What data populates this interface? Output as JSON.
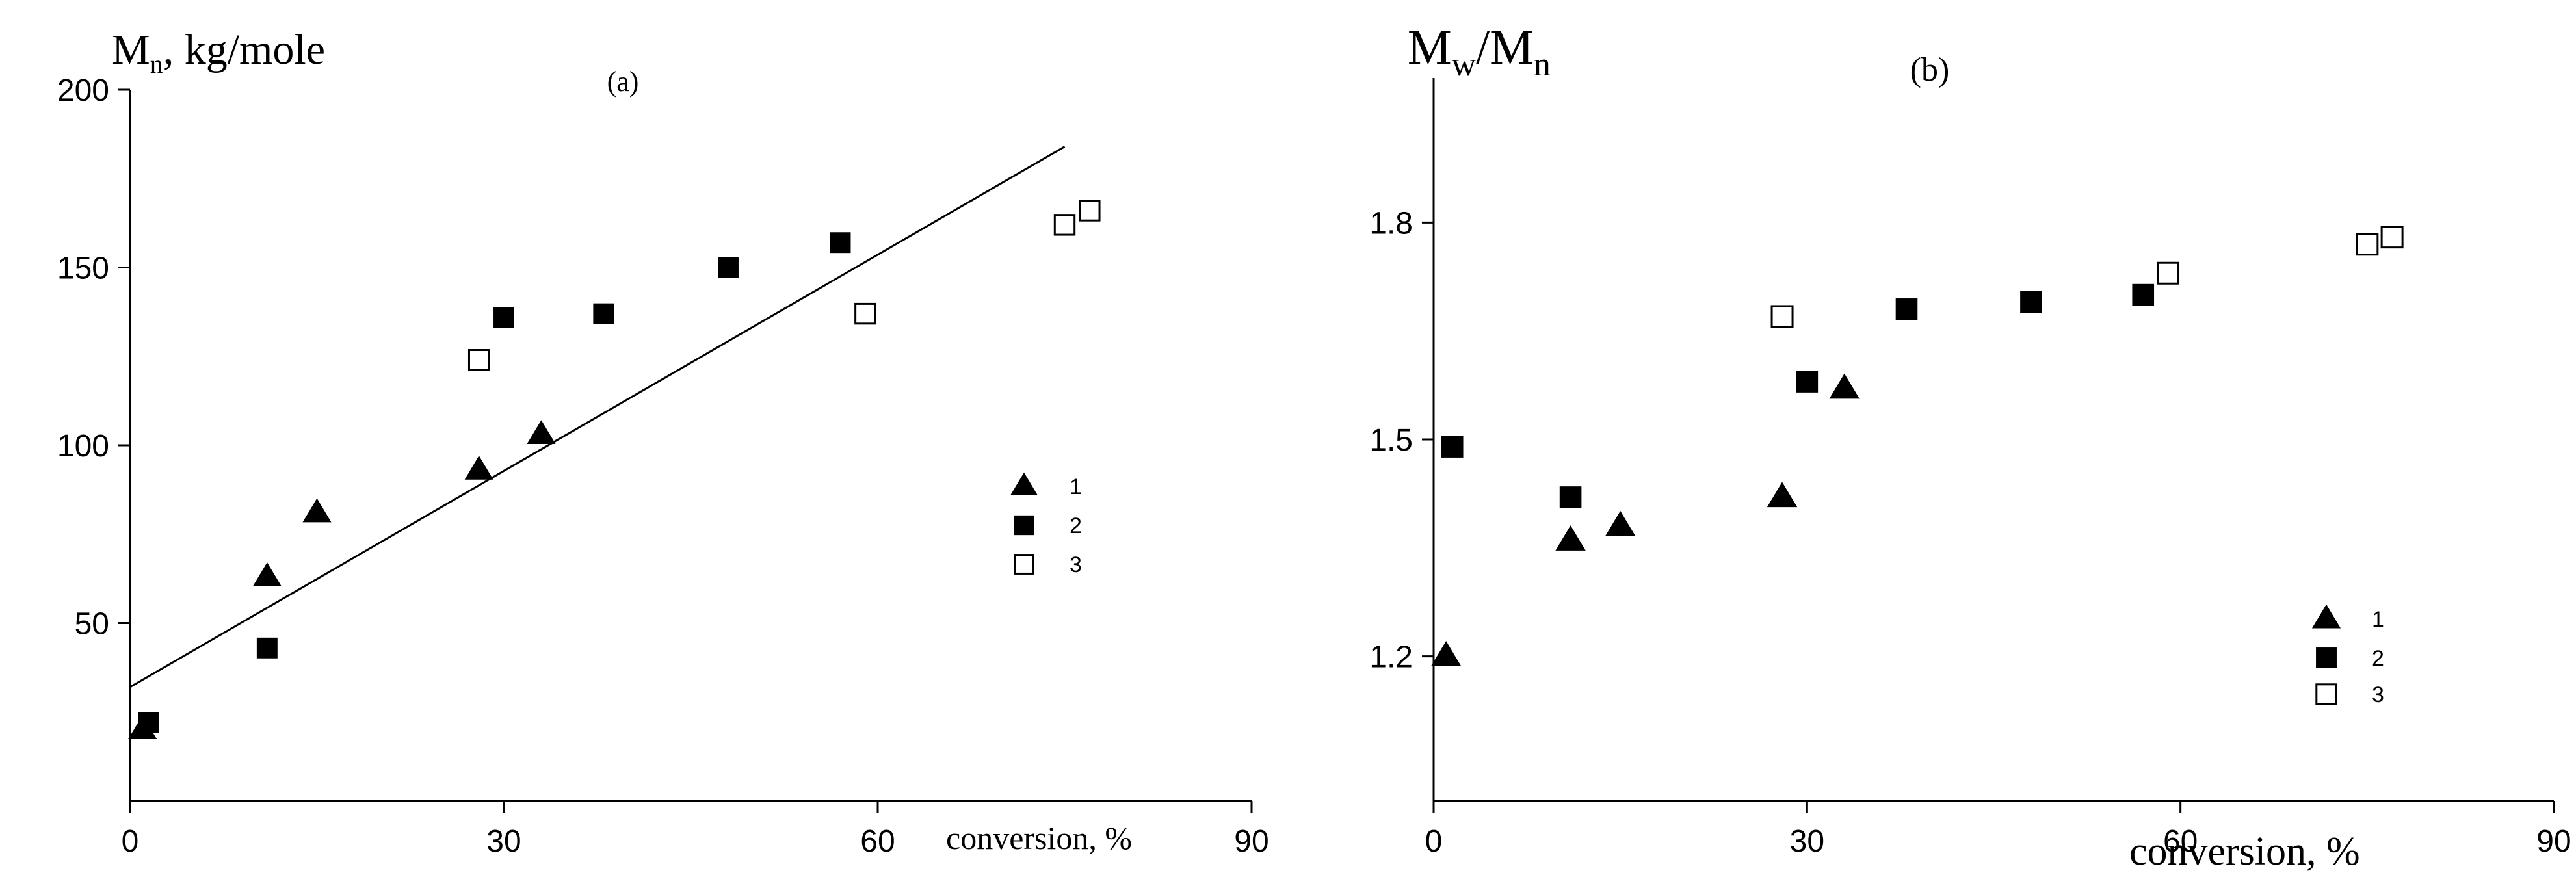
{
  "chart_data": [
    {
      "type": "scatter",
      "panel_label": "(a)",
      "ylabel_main": "M",
      "ylabel_sub": "n",
      "ylabel_suffix": ", kg/mole",
      "xlabel": "conversion, %",
      "xlim": [
        0,
        90
      ],
      "ylim": [
        0,
        200
      ],
      "x_ticks": [
        "0",
        "30",
        "60",
        "90"
      ],
      "y_ticks": [
        "50",
        "100",
        "150",
        "200"
      ],
      "legend": [
        "1",
        "2",
        "3"
      ],
      "legend_position": "right",
      "series": [
        {
          "name": "1",
          "marker": "triangle-filled",
          "points": [
            [
              1,
              20
            ],
            [
              11,
              63
            ],
            [
              15,
              81
            ],
            [
              28,
              93
            ],
            [
              33,
              103
            ]
          ]
        },
        {
          "name": "2",
          "marker": "square-filled",
          "points": [
            [
              1.5,
              22
            ],
            [
              11,
              43
            ],
            [
              30,
              136
            ],
            [
              38,
              137
            ],
            [
              48,
              150
            ],
            [
              57,
              157
            ]
          ]
        },
        {
          "name": "3",
          "marker": "square-open",
          "points": [
            [
              28,
              124
            ],
            [
              59,
              137
            ],
            [
              75,
              162
            ],
            [
              77,
              166
            ]
          ]
        }
      ],
      "trendline": {
        "x": [
          0,
          75
        ],
        "y": [
          32,
          184
        ]
      }
    },
    {
      "type": "scatter",
      "panel_label": "(b)",
      "ylabel_main": "M",
      "ylabel_sub": "w",
      "ylabel_mid": "/M",
      "ylabel_sub2": "n",
      "xlabel": "conversion, %",
      "xlim": [
        0,
        90
      ],
      "ylim": [
        1.0,
        2.0
      ],
      "x_ticks": [
        "0",
        "30",
        "60",
        "90"
      ],
      "y_ticks": [
        "1.2",
        "1.5",
        "1.8"
      ],
      "legend": [
        "1",
        "2",
        "3"
      ],
      "legend_position": "bottom-right",
      "series": [
        {
          "name": "1",
          "marker": "triangle-filled",
          "points": [
            [
              1,
              1.2
            ],
            [
              11,
              1.36
            ],
            [
              15,
              1.38
            ],
            [
              28,
              1.42
            ],
            [
              33,
              1.57
            ]
          ]
        },
        {
          "name": "2",
          "marker": "square-filled",
          "points": [
            [
              1.5,
              1.49
            ],
            [
              11,
              1.42
            ],
            [
              30,
              1.58
            ],
            [
              38,
              1.68
            ],
            [
              48,
              1.69
            ],
            [
              57,
              1.7
            ]
          ]
        },
        {
          "name": "3",
          "marker": "square-open",
          "points": [
            [
              28,
              1.67
            ],
            [
              59,
              1.73
            ],
            [
              75,
              1.77
            ],
            [
              77,
              1.78
            ]
          ]
        }
      ]
    }
  ]
}
